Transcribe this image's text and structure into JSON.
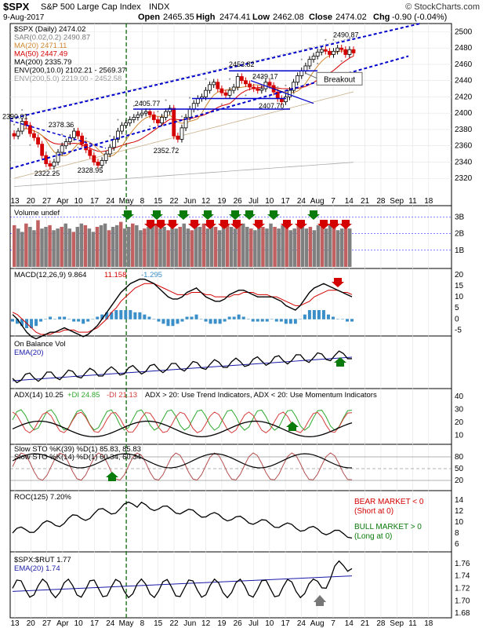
{
  "header": {
    "symbol": "$SPX",
    "name": "S&P 500 Large Cap Index",
    "exchange": "INDX",
    "date": "9-Aug-2017",
    "open_label": "Open",
    "open": "2465.35",
    "high_label": "High",
    "high": "2474.41",
    "low_label": "Low",
    "low": "2462.08",
    "close_label": "Close",
    "close": "2474.02",
    "chg_label": "Chg",
    "chg": "-0.90 (-0.04%)",
    "watermark": "© StockCharts.com"
  },
  "colors": {
    "price_up": "#000000",
    "price_down": "#d40000",
    "ma20": "#d08830",
    "ma50": "#d40000",
    "ma200": "#000000",
    "trend": "#0000cc",
    "volume_up": "#808080",
    "volume_down": "#c06060",
    "green_arrow": "#0a7a0a",
    "macd_hist": "#3a8fc8",
    "ema": "#1a1aa8",
    "adx_pos": "#2ea82e",
    "adx_neg": "#d43c3c"
  },
  "chart_data": [
    {
      "type": "candlestick",
      "panel": "price",
      "legend": [
        "$SPX (Daily) 2474.02",
        "SAR(0.02,0.2) 2490.87",
        "MA(20) 2471.11",
        "MA(50) 2447.49",
        "MA(200) 2335.79",
        "ENV(200,10.0) 2102.21 - 2569.37",
        "ENV(200,5.0) 2219.00 - 2452.58"
      ],
      "ylim": [
        2300,
        2510
      ],
      "yticks": [
        2320,
        2340,
        2360,
        2380,
        2400,
        2420,
        2440,
        2460,
        2480,
        2500
      ],
      "annotations": [
        "2390.01",
        "2378.36",
        "2322.25",
        "2328.95",
        "2405.77",
        "2352.72",
        "2453.82",
        "2439.17",
        "2407.70",
        "2490.87",
        "Breakout"
      ],
      "close_series": [
        2372,
        2378,
        2390,
        2385,
        2375,
        2370,
        2362,
        2348,
        2338,
        2335,
        2340,
        2352,
        2360,
        2365,
        2370,
        2378,
        2372,
        2362,
        2355,
        2348,
        2340,
        2336,
        2342,
        2350,
        2358,
        2368,
        2378,
        2385,
        2388,
        2392,
        2395,
        2398,
        2400,
        2402,
        2398,
        2392,
        2388,
        2395,
        2402,
        2406,
        2372,
        2368,
        2382,
        2395,
        2405,
        2412,
        2418,
        2420,
        2428,
        2435,
        2438,
        2430,
        2425,
        2422,
        2428,
        2432,
        2445,
        2440,
        2436,
        2432,
        2430,
        2428,
        2430,
        2438,
        2434,
        2426,
        2418,
        2414,
        2420,
        2428,
        2438,
        2446,
        2452,
        2458,
        2466,
        2470,
        2475,
        2478,
        2476,
        2472,
        2476,
        2480,
        2478,
        2472,
        2478,
        2474
      ]
    },
    {
      "type": "bar",
      "panel": "volume",
      "legend": "Volume undef",
      "yticks": [
        "1B",
        "2B",
        "3B"
      ],
      "values_billions": [
        2.5,
        2.3,
        2.1,
        2.6,
        2.4,
        2.2,
        2.8,
        2.3,
        2.4,
        2.5,
        2.2,
        2.3,
        2.4,
        2.6,
        2.3,
        2.1,
        2.4,
        2.6,
        2.5,
        2.3,
        2.1,
        2.4,
        2.5,
        2.6,
        2.2,
        2.4,
        2.5,
        2.7,
        2.3,
        2.4,
        2.6,
        2.5,
        2.2,
        2.3,
        2.4,
        2.5,
        2.6,
        2.3,
        2.4,
        2.2,
        2.5,
        2.3,
        2.4,
        2.6,
        2.3,
        2.2,
        2.5,
        2.4,
        2.6,
        2.3,
        2.5,
        2.4,
        2.2,
        2.6,
        2.5,
        2.4,
        2.3,
        2.5,
        2.6,
        2.4,
        2.3,
        2.2,
        2.5,
        2.4,
        2.3,
        2.6,
        2.4,
        2.3,
        2.5,
        2.4,
        2.2,
        2.3,
        2.5,
        2.4,
        2.3,
        2.4,
        2.2,
        2.5,
        2.4,
        2.3,
        2.5,
        2.4,
        2.2,
        2.3,
        2.4,
        2.3
      ]
    },
    {
      "type": "line",
      "panel": "macd",
      "legend": [
        "MACD(12,26,9) 9.864",
        "11.158",
        "-1.295"
      ],
      "yticks": [
        20,
        15,
        10,
        5,
        0,
        -5
      ],
      "macd": [
        2,
        0,
        -3,
        -6,
        -8,
        -9,
        -8,
        -7,
        -6,
        -6,
        -5,
        -4,
        -5,
        -6,
        -7,
        -8,
        -7,
        -5,
        -3,
        0,
        3,
        6,
        9,
        12,
        14,
        16,
        17,
        18,
        18,
        17,
        16,
        14,
        12,
        10,
        9,
        9,
        10,
        12,
        13,
        14,
        12,
        10,
        9,
        8,
        8,
        9,
        11,
        12,
        13,
        13,
        12,
        11,
        10,
        10,
        10,
        10,
        9,
        8,
        6,
        5,
        4,
        6,
        9,
        12,
        14,
        15,
        16,
        15,
        14,
        13,
        12,
        11,
        10
      ],
      "signal": [
        3,
        2,
        0,
        -2,
        -4,
        -6,
        -7,
        -7,
        -7,
        -6,
        -6,
        -5,
        -5,
        -5,
        -6,
        -6,
        -6,
        -5,
        -4,
        -2,
        0,
        3,
        5,
        8,
        10,
        12,
        14,
        15,
        16,
        16,
        16,
        15,
        14,
        13,
        12,
        11,
        11,
        11,
        12,
        12,
        12,
        11,
        11,
        10,
        10,
        10,
        10,
        11,
        11,
        12,
        12,
        12,
        11,
        11,
        11,
        10,
        10,
        9,
        8,
        7,
        6,
        6,
        7,
        8,
        10,
        11,
        12,
        13,
        13,
        13,
        12,
        12,
        11
      ]
    },
    {
      "type": "line",
      "panel": "obv",
      "legend": [
        "On Balance Vol",
        "EMA(20)"
      ]
    },
    {
      "type": "line",
      "panel": "adx",
      "legend": [
        "ADX(14) 10.25",
        "+DI 24.85",
        "-DI 21.13",
        "ADX > 20: Use Trend Indicators, ADX < 20: Use Momentum Indicators"
      ],
      "yticks": [
        40,
        30,
        20,
        10
      ]
    },
    {
      "type": "line",
      "panel": "stochastic",
      "legend": [
        "Slow STO %K(39) %D(1) 85.83, 85.83",
        "Slow STO %K(14) %D(1) 60.34, 60.34"
      ],
      "yticks": [
        80,
        50,
        20
      ]
    },
    {
      "type": "line",
      "panel": "roc",
      "legend": "ROC(125) 7.20%",
      "yticks": [
        14,
        12,
        10,
        8,
        6
      ],
      "notes": [
        "BEAR MARKET < 0",
        "(Short at 0)",
        "BULL MARKET > 0",
        "(Long at 0)"
      ]
    },
    {
      "type": "line",
      "panel": "ratio",
      "legend": [
        "$SPX:$RUT 1.77",
        "EMA(20) 1.74"
      ],
      "yticks": [
        1.76,
        1.74,
        1.72,
        1.7,
        1.68
      ]
    }
  ],
  "x_axis": {
    "top_labels": [
      "13",
      "20",
      "27",
      "Apr",
      "10",
      "17",
      "24",
      "May",
      "8",
      "15",
      "22",
      "Jun",
      "12",
      "19",
      "26",
      "Jul",
      "10",
      "17",
      "24",
      "Aug",
      "7",
      "14",
      "21",
      "28",
      "Sep",
      "11",
      "18"
    ],
    "bottom_labels": [
      "13",
      "20",
      "27",
      "Apr",
      "10",
      "17",
      "24",
      "May",
      "8",
      "15",
      "22",
      "Jun",
      "12",
      "19",
      "26",
      "Jul",
      "10",
      "17",
      "24",
      "Aug",
      "7",
      "14",
      "21",
      "28",
      "Sep",
      "11",
      "18"
    ]
  }
}
